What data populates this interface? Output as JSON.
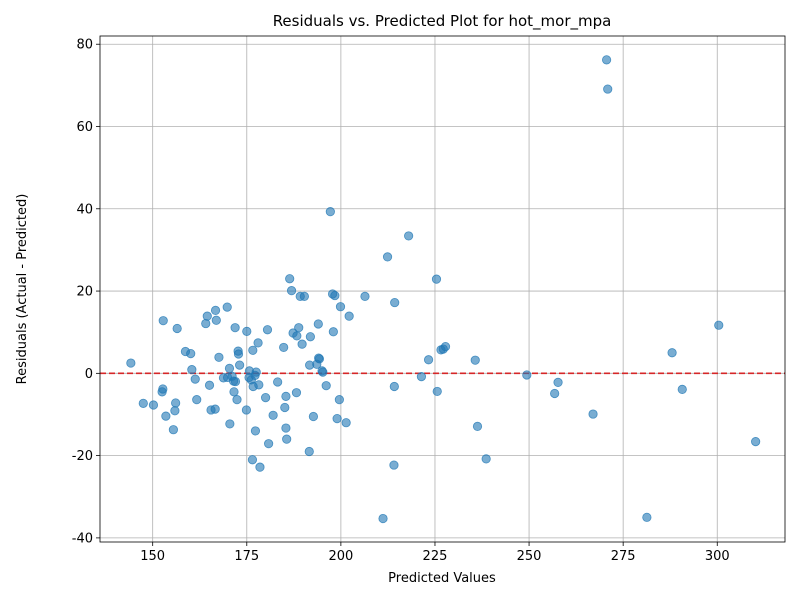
{
  "chart_data": {
    "type": "scatter",
    "title": "Residuals vs. Predicted Plot for hot_mor_mpa",
    "xlabel": "Predicted Values",
    "ylabel": "Residuals (Actual - Predicted)",
    "xlim": [
      136,
      318
    ],
    "ylim": [
      -41,
      82
    ],
    "xticks": [
      150,
      175,
      200,
      225,
      250,
      275,
      300
    ],
    "yticks": [
      -40,
      -20,
      0,
      20,
      40,
      60,
      80
    ],
    "grid": true,
    "point_color": "#1f77b4",
    "reference_line": {
      "y": 0,
      "color": "#d62728",
      "style": "dashed"
    },
    "points": [
      [
        144.2,
        2.5
      ],
      [
        147.5,
        -7.3
      ],
      [
        150.2,
        -7.7
      ],
      [
        152.5,
        -4.5
      ],
      [
        152.7,
        -3.8
      ],
      [
        152.8,
        12.8
      ],
      [
        153.5,
        -10.4
      ],
      [
        155.5,
        -13.7
      ],
      [
        155.9,
        -9.1
      ],
      [
        156.1,
        -7.2
      ],
      [
        156.5,
        10.9
      ],
      [
        158.7,
        5.3
      ],
      [
        160.1,
        4.8
      ],
      [
        160.4,
        0.9
      ],
      [
        161.3,
        -1.4
      ],
      [
        161.7,
        -6.4
      ],
      [
        164.1,
        12.1
      ],
      [
        164.5,
        13.9
      ],
      [
        165.1,
        -2.9
      ],
      [
        165.5,
        -8.9
      ],
      [
        166.6,
        -8.7
      ],
      [
        166.7,
        15.3
      ],
      [
        166.9,
        12.9
      ],
      [
        167.6,
        3.9
      ],
      [
        168.8,
        -1.1
      ],
      [
        169.8,
        16.1
      ],
      [
        169.9,
        -1.0
      ],
      [
        170.4,
        1.2
      ],
      [
        170.5,
        -12.3
      ],
      [
        171.1,
        -0.7
      ],
      [
        171.5,
        -1.9
      ],
      [
        171.6,
        -4.5
      ],
      [
        171.9,
        11.1
      ],
      [
        172.0,
        -2.0
      ],
      [
        172.4,
        -6.4
      ],
      [
        172.7,
        5.4
      ],
      [
        172.8,
        4.7
      ],
      [
        173.1,
        2.0
      ],
      [
        174.9,
        -8.9
      ],
      [
        175.0,
        10.2
      ],
      [
        175.6,
        -1.0
      ],
      [
        175.7,
        0.6
      ],
      [
        176.2,
        -1.6
      ],
      [
        176.5,
        -21.0
      ],
      [
        176.6,
        5.6
      ],
      [
        176.7,
        -3.2
      ],
      [
        177.2,
        -0.5
      ],
      [
        177.3,
        -14.0
      ],
      [
        177.5,
        0.3
      ],
      [
        178.0,
        7.4
      ],
      [
        178.2,
        -2.8
      ],
      [
        178.5,
        -22.8
      ],
      [
        180.0,
        -5.9
      ],
      [
        180.5,
        10.6
      ],
      [
        180.8,
        -17.1
      ],
      [
        182.0,
        -10.2
      ],
      [
        183.2,
        -2.1
      ],
      [
        184.8,
        6.3
      ],
      [
        185.1,
        -8.3
      ],
      [
        185.4,
        -5.6
      ],
      [
        185.4,
        -13.3
      ],
      [
        185.6,
        -16.0
      ],
      [
        186.4,
        23.0
      ],
      [
        186.9,
        20.1
      ],
      [
        187.3,
        9.8
      ],
      [
        188.2,
        -4.7
      ],
      [
        188.3,
        9.1
      ],
      [
        188.8,
        11.1
      ],
      [
        189.2,
        18.7
      ],
      [
        189.7,
        7.1
      ],
      [
        190.3,
        18.7
      ],
      [
        191.6,
        -19.0
      ],
      [
        191.7,
        2.0
      ],
      [
        191.9,
        8.9
      ],
      [
        192.7,
        -10.5
      ],
      [
        193.6,
        2.2
      ],
      [
        194.0,
        12.0
      ],
      [
        194.1,
        3.7
      ],
      [
        194.3,
        3.5
      ],
      [
        195.0,
        0.6
      ],
      [
        195.2,
        0.3
      ],
      [
        196.1,
        -3.0
      ],
      [
        197.2,
        39.3
      ],
      [
        197.8,
        19.3
      ],
      [
        198.0,
        10.1
      ],
      [
        198.4,
        18.9
      ],
      [
        199.0,
        -11.0
      ],
      [
        199.6,
        -6.4
      ],
      [
        199.9,
        16.2
      ],
      [
        201.4,
        -12.0
      ],
      [
        202.2,
        13.9
      ],
      [
        206.4,
        18.7
      ],
      [
        211.2,
        -35.3
      ],
      [
        212.4,
        28.3
      ],
      [
        214.1,
        -22.3
      ],
      [
        214.2,
        -3.2
      ],
      [
        214.3,
        17.2
      ],
      [
        218.0,
        33.4
      ],
      [
        221.4,
        -0.8
      ],
      [
        223.3,
        3.3
      ],
      [
        225.4,
        22.9
      ],
      [
        225.6,
        -4.4
      ],
      [
        226.6,
        5.7
      ],
      [
        227.2,
        5.9
      ],
      [
        227.8,
        6.5
      ],
      [
        235.7,
        3.2
      ],
      [
        236.3,
        -12.9
      ],
      [
        238.6,
        -20.8
      ],
      [
        249.4,
        -0.4
      ],
      [
        256.8,
        -4.9
      ],
      [
        257.7,
        -2.2
      ],
      [
        267.0,
        -9.9
      ],
      [
        270.6,
        76.2
      ],
      [
        270.9,
        69.1
      ],
      [
        281.3,
        -35.0
      ],
      [
        288.0,
        5.0
      ],
      [
        290.7,
        -3.9
      ],
      [
        300.4,
        11.7
      ],
      [
        310.2,
        -16.6
      ]
    ]
  }
}
